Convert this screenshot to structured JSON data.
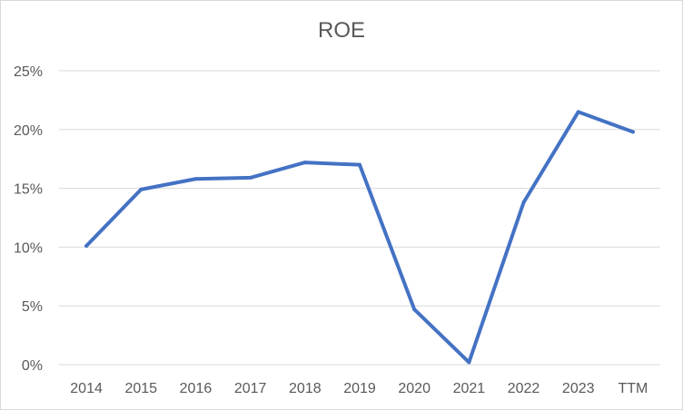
{
  "chart_data": {
    "type": "line",
    "title": "ROE",
    "xlabel": "",
    "ylabel": "",
    "categories": [
      "2014",
      "2015",
      "2016",
      "2017",
      "2018",
      "2019",
      "2020",
      "2021",
      "2022",
      "2023",
      "TTM"
    ],
    "series": [
      {
        "values": [
          10.1,
          14.9,
          15.8,
          15.9,
          17.2,
          17.0,
          4.7,
          0.2,
          13.8,
          21.5,
          19.8
        ],
        "color": "#4472c4"
      }
    ],
    "ylim": [
      0,
      25
    ],
    "y_ticks": [
      {
        "value": 0,
        "label": "0%"
      },
      {
        "value": 5,
        "label": "5%"
      },
      {
        "value": 10,
        "label": "10%"
      },
      {
        "value": 15,
        "label": "15%"
      },
      {
        "value": 20,
        "label": "20%"
      },
      {
        "value": 25,
        "label": "25%"
      }
    ],
    "grid": true,
    "legend": "none",
    "gridline_color": "#d9d9d9"
  }
}
